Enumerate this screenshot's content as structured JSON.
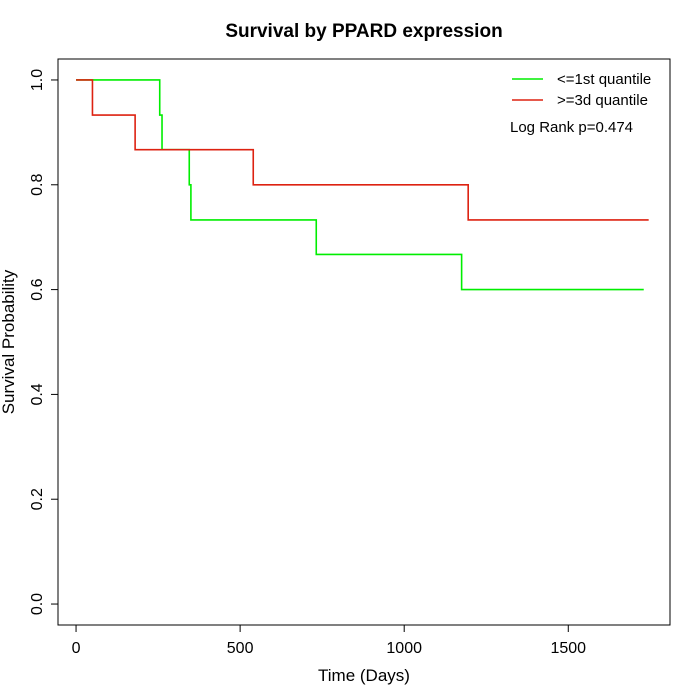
{
  "chart_data": {
    "type": "line",
    "title": "Survival by PPARD expression",
    "xlabel": "Time (Days)",
    "ylabel": "Survival Probability",
    "xlim": [
      -55,
      1810
    ],
    "ylim": [
      -0.04,
      1.04
    ],
    "xticks": [
      0,
      500,
      1000,
      1500
    ],
    "yticks": [
      0.0,
      0.2,
      0.4,
      0.6,
      0.8,
      1.0
    ],
    "xtick_labels": [
      "0",
      "500",
      "1000",
      "1500"
    ],
    "ytick_labels": [
      "0.0",
      "0.2",
      "0.4",
      "0.6",
      "0.8",
      "1.0"
    ],
    "step": true,
    "grid": false,
    "legend_position": "top-right",
    "annotation": "Log Rank p=0.474",
    "series": [
      {
        "name": "<=1st quantile",
        "color": "#00ee00",
        "x": [
          0,
          255,
          262,
          345,
          350,
          732,
          1175,
          1730
        ],
        "y": [
          1.0,
          0.933,
          0.867,
          0.8,
          0.733,
          0.667,
          0.6,
          0.6
        ]
      },
      {
        "name": ">=3d quantile",
        "color": "#dd2211",
        "x": [
          0,
          50,
          180,
          540,
          1195,
          1745
        ],
        "y": [
          1.0,
          0.933,
          0.867,
          0.8,
          0.733,
          0.733
        ]
      }
    ]
  }
}
